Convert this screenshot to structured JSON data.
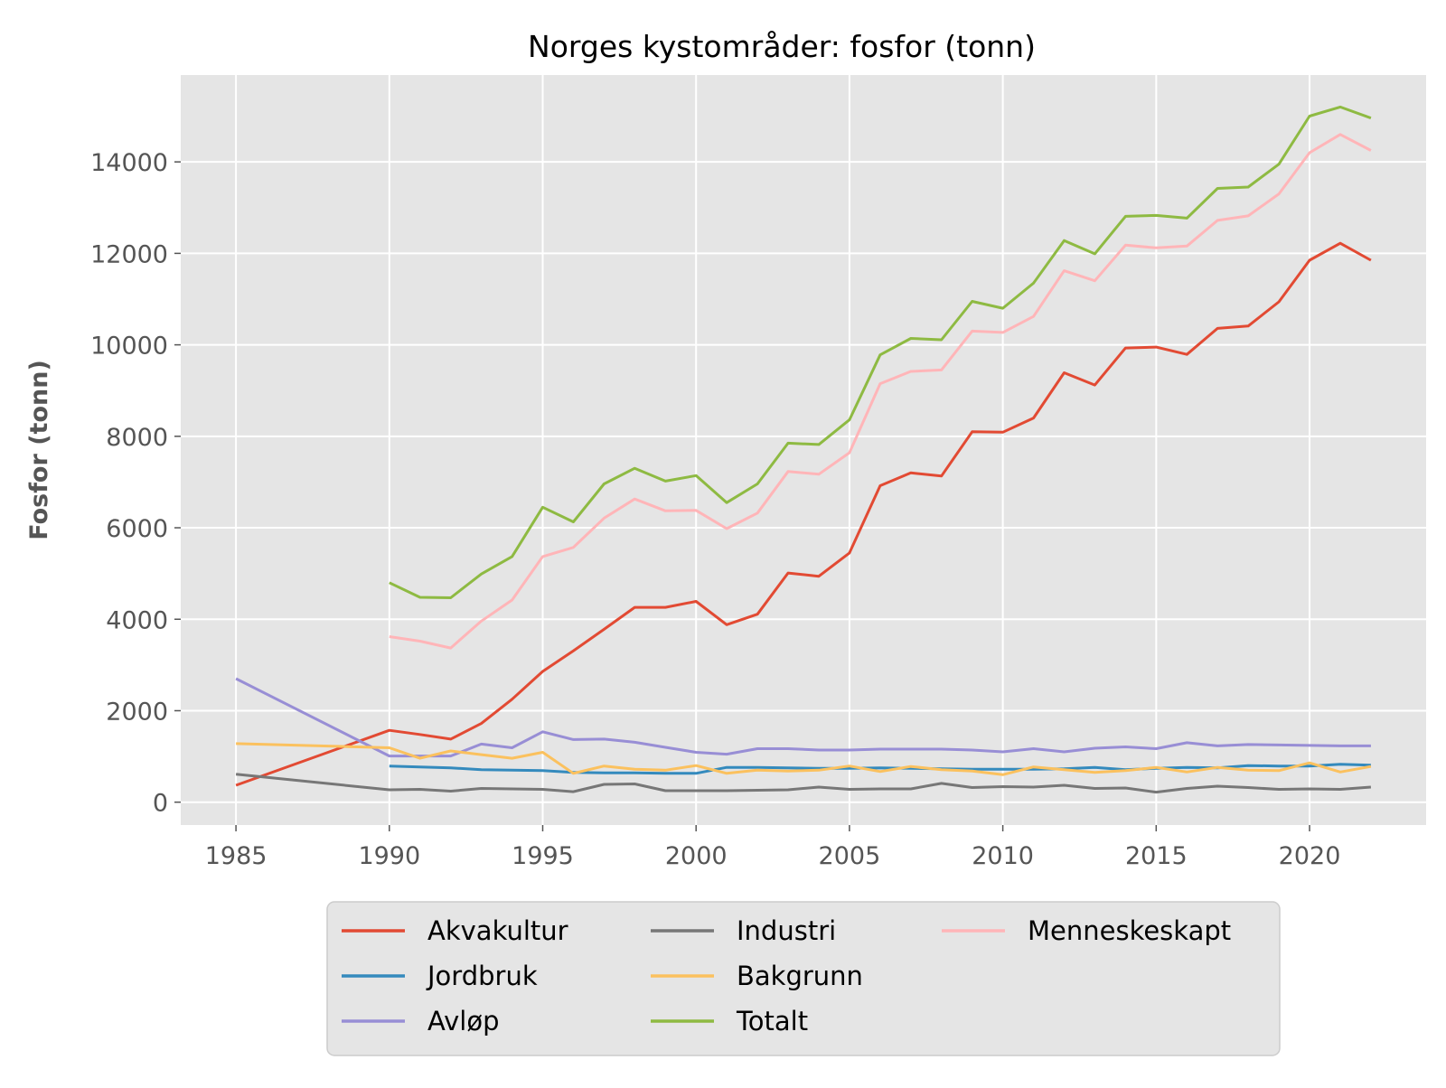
{
  "chart_data": {
    "type": "line",
    "title": "Norges kystområder: fosfor (tonn)",
    "xlabel": "",
    "ylabel": "Fosfor (tonn)",
    "xlim": [
      1983.2,
      2023.8
    ],
    "ylim": [
      -500,
      15900
    ],
    "xticks": [
      1985,
      1990,
      1995,
      2000,
      2005,
      2010,
      2015,
      2020
    ],
    "yticks": [
      0,
      2000,
      4000,
      6000,
      8000,
      10000,
      12000,
      14000
    ],
    "grid": true,
    "legend_position": "bottom-center",
    "background": "#e5e5e5",
    "series": [
      {
        "name": "Akvakultur",
        "color": "#e24a33",
        "x": [
          1985,
          1990,
          1991,
          1992,
          1993,
          1994,
          1995,
          1996,
          1997,
          1998,
          1999,
          2000,
          2001,
          2002,
          2003,
          2004,
          2005,
          2006,
          2007,
          2008,
          2009,
          2010,
          2011,
          2012,
          2013,
          2014,
          2015,
          2016,
          2017,
          2018,
          2019,
          2020,
          2021,
          2022
        ],
        "y": [
          370,
          1570,
          1480,
          1380,
          1720,
          2250,
          2860,
          3310,
          3780,
          4260,
          4260,
          4390,
          3880,
          4110,
          5010,
          4940,
          5450,
          6920,
          7200,
          7130,
          8100,
          8090,
          8400,
          9390,
          9120,
          9930,
          9950,
          9790,
          10360,
          10410,
          10940,
          11850,
          12220,
          11850
        ]
      },
      {
        "name": "Jordbruk",
        "color": "#348abd",
        "x": [
          1990,
          1991,
          1992,
          1993,
          1994,
          1995,
          1996,
          1997,
          1998,
          1999,
          2000,
          2001,
          2002,
          2003,
          2004,
          2005,
          2006,
          2007,
          2008,
          2009,
          2010,
          2011,
          2012,
          2013,
          2014,
          2015,
          2016,
          2017,
          2018,
          2019,
          2020,
          2021,
          2022
        ],
        "y": [
          790,
          770,
          750,
          710,
          700,
          690,
          650,
          640,
          640,
          630,
          630,
          760,
          760,
          750,
          740,
          740,
          750,
          740,
          730,
          720,
          720,
          720,
          730,
          760,
          710,
          740,
          760,
          750,
          800,
          790,
          790,
          830,
          810
        ]
      },
      {
        "name": "Avløp",
        "color": "#988ed5",
        "x": [
          1985,
          1990,
          1991,
          1992,
          1993,
          1994,
          1995,
          1996,
          1997,
          1998,
          1999,
          2000,
          2001,
          2002,
          2003,
          2004,
          2005,
          2006,
          2007,
          2008,
          2009,
          2010,
          2011,
          2012,
          2013,
          2014,
          2015,
          2016,
          2017,
          2018,
          2019,
          2020,
          2021,
          2022
        ],
        "y": [
          2700,
          1010,
          1010,
          1010,
          1270,
          1190,
          1540,
          1370,
          1380,
          1310,
          1200,
          1090,
          1050,
          1170,
          1170,
          1140,
          1140,
          1160,
          1160,
          1160,
          1140,
          1100,
          1170,
          1100,
          1180,
          1210,
          1170,
          1300,
          1230,
          1260,
          1250,
          1240,
          1230,
          1230
        ]
      },
      {
        "name": "Industri",
        "color": "#777777",
        "x": [
          1985,
          1990,
          1991,
          1992,
          1993,
          1994,
          1995,
          1996,
          1997,
          1998,
          1999,
          2000,
          2001,
          2002,
          2003,
          2004,
          2005,
          2006,
          2007,
          2008,
          2009,
          2010,
          2011,
          2012,
          2013,
          2014,
          2015,
          2016,
          2017,
          2018,
          2019,
          2020,
          2021,
          2022
        ],
        "y": [
          610,
          270,
          280,
          240,
          300,
          290,
          280,
          230,
          390,
          400,
          250,
          250,
          250,
          260,
          270,
          330,
          280,
          290,
          290,
          410,
          320,
          340,
          330,
          370,
          300,
          310,
          220,
          300,
          350,
          320,
          280,
          290,
          280,
          330
        ]
      },
      {
        "name": "Bakgrunn",
        "color": "#fbc15e",
        "x": [
          1985,
          1990,
          1991,
          1992,
          1993,
          1994,
          1995,
          1996,
          1997,
          1998,
          1999,
          2000,
          2001,
          2002,
          2003,
          2004,
          2005,
          2006,
          2007,
          2008,
          2009,
          2010,
          2011,
          2012,
          2013,
          2014,
          2015,
          2016,
          2017,
          2018,
          2019,
          2020,
          2021,
          2022
        ],
        "y": [
          1280,
          1190,
          960,
          1120,
          1040,
          960,
          1090,
          630,
          790,
          720,
          700,
          800,
          630,
          700,
          680,
          700,
          790,
          670,
          780,
          710,
          680,
          600,
          770,
          710,
          650,
          690,
          760,
          660,
          760,
          700,
          690,
          860,
          660,
          780
        ]
      },
      {
        "name": "Totalt",
        "color": "#8eba42",
        "x": [
          1990,
          1991,
          1992,
          1993,
          1994,
          1995,
          1996,
          1997,
          1998,
          1999,
          2000,
          2001,
          2002,
          2003,
          2004,
          2005,
          2006,
          2007,
          2008,
          2009,
          2010,
          2011,
          2012,
          2013,
          2014,
          2015,
          2016,
          2017,
          2018,
          2019,
          2020,
          2021,
          2022
        ],
        "y": [
          4800,
          4480,
          4470,
          4990,
          5370,
          6450,
          6130,
          6960,
          7300,
          7020,
          7140,
          6550,
          6960,
          7850,
          7820,
          8360,
          9780,
          10140,
          10110,
          10950,
          10800,
          11350,
          12280,
          11990,
          12810,
          12830,
          12770,
          13420,
          13450,
          13950,
          15000,
          15200,
          14960
        ]
      },
      {
        "name": "Menneskeskapt",
        "color": "#ffb5b8",
        "x": [
          1990,
          1991,
          1992,
          1993,
          1994,
          1995,
          1996,
          1997,
          1998,
          1999,
          2000,
          2001,
          2002,
          2003,
          2004,
          2005,
          2006,
          2007,
          2008,
          2009,
          2010,
          2011,
          2012,
          2013,
          2014,
          2015,
          2016,
          2017,
          2018,
          2019,
          2020,
          2021,
          2022
        ],
        "y": [
          3620,
          3520,
          3370,
          3960,
          4420,
          5370,
          5570,
          6210,
          6630,
          6370,
          6380,
          5980,
          6320,
          7230,
          7170,
          7640,
          9150,
          9420,
          9450,
          10300,
          10270,
          10620,
          11620,
          11400,
          12180,
          12120,
          12160,
          12720,
          12820,
          13300,
          14200,
          14600,
          14250
        ]
      }
    ]
  }
}
